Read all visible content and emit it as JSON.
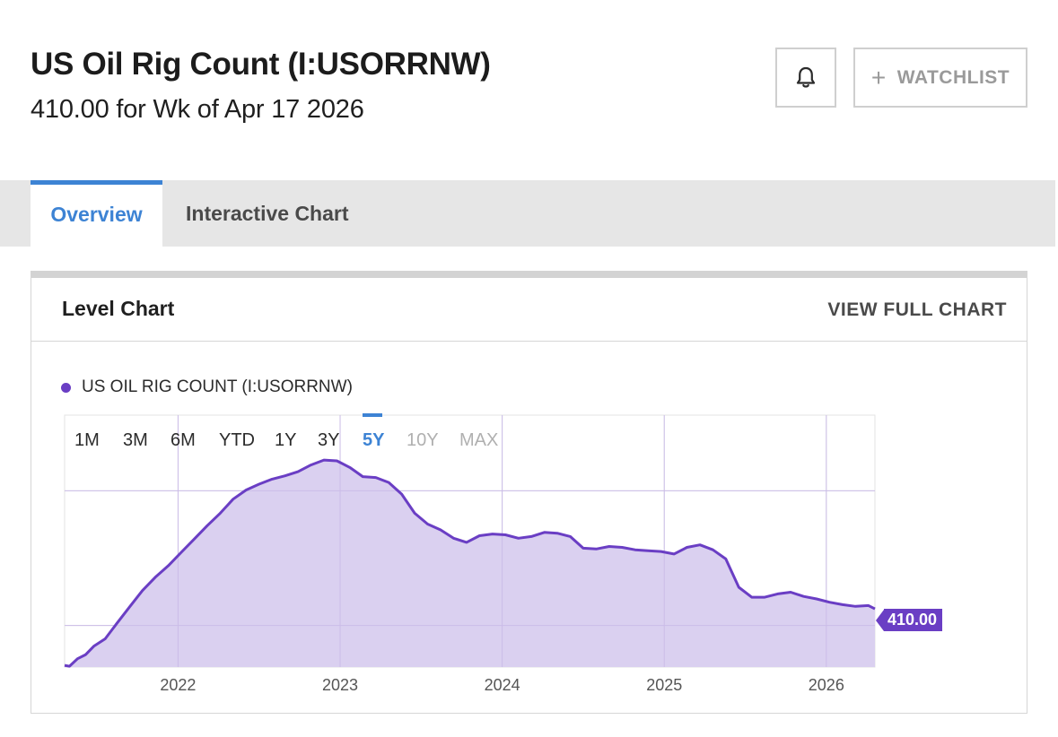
{
  "header": {
    "title": "US Oil Rig Count (I:USORRNW)",
    "subtitle": "410.00 for Wk of Apr 17 2026",
    "watchlist_label": "WATCHLIST",
    "bell_icon": "bell-icon",
    "plus_icon": "plus-icon"
  },
  "tabs": [
    {
      "label": "Overview",
      "active": true
    },
    {
      "label": "Interactive Chart",
      "active": false
    }
  ],
  "card": {
    "title": "Level Chart",
    "view_full_label": "VIEW FULL CHART"
  },
  "colors": {
    "accent": "#3d83d4",
    "series": "#6a3ec4",
    "area_fill": "#d8cdef"
  },
  "range_buttons": [
    {
      "label": "1M",
      "state": "normal"
    },
    {
      "label": "3M",
      "state": "normal"
    },
    {
      "label": "6M",
      "state": "normal"
    },
    {
      "label": "YTD",
      "state": "normal"
    },
    {
      "label": "1Y",
      "state": "normal"
    },
    {
      "label": "3Y",
      "state": "normal"
    },
    {
      "label": "5Y",
      "state": "active"
    },
    {
      "label": "10Y",
      "state": "disabled"
    },
    {
      "label": "MAX",
      "state": "disabled"
    }
  ],
  "chart_data": {
    "type": "area",
    "series": [
      {
        "name": "US OIL RIG COUNT (I:USORRNW)",
        "color": "#6a3ec4"
      }
    ],
    "last_value_label": "410.00",
    "xticks": [
      "2022",
      "2023",
      "2024",
      "2025",
      "2026"
    ],
    "x_range": [
      2021.3,
      2026.3
    ],
    "y_range": [
      340,
      643
    ],
    "y_gridlines": [
      390,
      552
    ],
    "grid": true,
    "points": [
      [
        2021.3,
        342
      ],
      [
        2021.33,
        341
      ],
      [
        2021.38,
        350
      ],
      [
        2021.43,
        355
      ],
      [
        2021.48,
        365
      ],
      [
        2021.55,
        374
      ],
      [
        2021.62,
        392
      ],
      [
        2021.7,
        412
      ],
      [
        2021.78,
        432
      ],
      [
        2021.86,
        448
      ],
      [
        2021.94,
        462
      ],
      [
        2022.02,
        478
      ],
      [
        2022.1,
        494
      ],
      [
        2022.18,
        510
      ],
      [
        2022.26,
        525
      ],
      [
        2022.34,
        542
      ],
      [
        2022.42,
        553
      ],
      [
        2022.5,
        560
      ],
      [
        2022.58,
        566
      ],
      [
        2022.66,
        570
      ],
      [
        2022.74,
        575
      ],
      [
        2022.82,
        583
      ],
      [
        2022.9,
        589
      ],
      [
        2022.98,
        588
      ],
      [
        2023.06,
        580
      ],
      [
        2023.14,
        569
      ],
      [
        2023.22,
        568
      ],
      [
        2023.3,
        562
      ],
      [
        2023.38,
        548
      ],
      [
        2023.46,
        525
      ],
      [
        2023.54,
        512
      ],
      [
        2023.62,
        505
      ],
      [
        2023.7,
        495
      ],
      [
        2023.78,
        490
      ],
      [
        2023.86,
        498
      ],
      [
        2023.94,
        500
      ],
      [
        2024.02,
        499
      ],
      [
        2024.1,
        495
      ],
      [
        2024.18,
        497
      ],
      [
        2024.26,
        502
      ],
      [
        2024.34,
        501
      ],
      [
        2024.42,
        497
      ],
      [
        2024.5,
        483
      ],
      [
        2024.58,
        482
      ],
      [
        2024.66,
        485
      ],
      [
        2024.74,
        484
      ],
      [
        2024.82,
        481
      ],
      [
        2024.9,
        480
      ],
      [
        2024.98,
        479
      ],
      [
        2025.06,
        476
      ],
      [
        2025.14,
        484
      ],
      [
        2025.22,
        487
      ],
      [
        2025.3,
        481
      ],
      [
        2025.38,
        470
      ],
      [
        2025.46,
        436
      ],
      [
        2025.54,
        424
      ],
      [
        2025.62,
        424
      ],
      [
        2025.7,
        428
      ],
      [
        2025.78,
        430
      ],
      [
        2025.86,
        425
      ],
      [
        2025.94,
        422
      ],
      [
        2026.02,
        418
      ],
      [
        2026.1,
        415
      ],
      [
        2026.18,
        413
      ],
      [
        2026.26,
        414
      ],
      [
        2026.3,
        410
      ]
    ]
  }
}
